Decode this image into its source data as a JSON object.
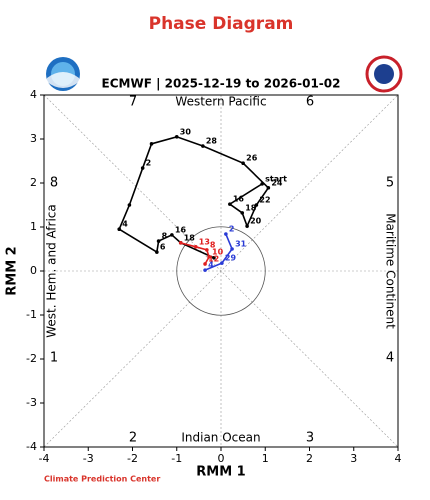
{
  "chart_data": {
    "type": "phase",
    "title": "Phase Diagram",
    "subtitle": "ECMWF | 2025-12-19 to 2026-01-02",
    "x_label": "RMM 1",
    "y_label": "RMM 2",
    "region_labels": {
      "top": "Western Pacific",
      "bottom": "Indian Ocean",
      "left": "West. Hem. and Africa",
      "right": "Maritime Continent"
    },
    "phase_labels": [
      "1",
      "2",
      "3",
      "4",
      "5",
      "6",
      "7",
      "8"
    ],
    "footer": "Climate Prediction Center",
    "xlim": [
      -4,
      4
    ],
    "ylim": [
      -4,
      4
    ],
    "xticks": [
      -4,
      -3,
      -2,
      -1,
      0,
      1,
      2,
      3,
      4
    ],
    "yticks": [
      -4,
      -3,
      -2,
      -1,
      0,
      1,
      2,
      3,
      4
    ],
    "series": [
      {
        "color": "#000000",
        "x": [
          0.93,
          0.2,
          0.48,
          0.59,
          0.8,
          1.07,
          0.5,
          -0.41,
          -1.0,
          -1.57,
          -1.77,
          -2.07,
          -2.3,
          -1.45,
          -1.41,
          -1.11,
          -0.91,
          -0.16
        ],
        "values": [
          1.98,
          1.52,
          1.32,
          1.02,
          1.5,
          1.89,
          2.45,
          2.84,
          3.05,
          2.89,
          2.34,
          1.5,
          0.95,
          0.43,
          0.68,
          0.82,
          0.64,
          0.3
        ],
        "labels": [
          "start",
          "16",
          "18",
          "20",
          "22",
          "24",
          "26",
          "28",
          "30",
          null,
          "2",
          null,
          "4",
          "6",
          "8",
          "16",
          "18",
          null
        ]
      },
      {
        "color": "#e02020",
        "x": [
          -0.91,
          -0.57,
          -0.32,
          -0.27,
          -0.36
        ],
        "values": [
          0.64,
          0.55,
          0.48,
          0.32,
          0.16
        ],
        "labels": [
          null,
          "13",
          "8",
          "10",
          "12"
        ]
      },
      {
        "color": "#2a3bd6",
        "x": [
          -0.36,
          0.02,
          0.25,
          0.11
        ],
        "values": [
          0.02,
          0.18,
          0.5,
          0.84
        ],
        "labels": [
          "4",
          "29",
          "31",
          "2"
        ]
      }
    ]
  }
}
